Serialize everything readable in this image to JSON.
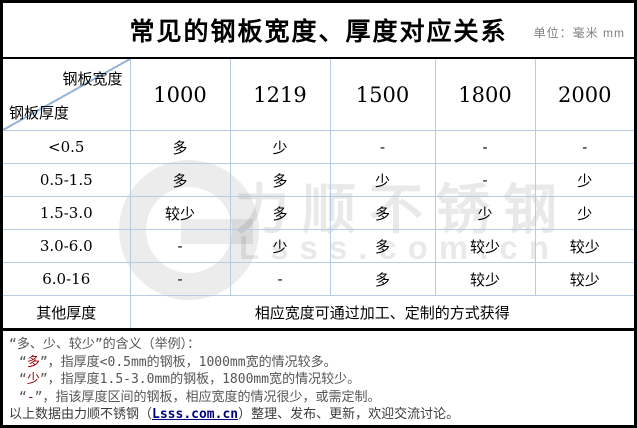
{
  "title": {
    "text": "常见的钢板宽度、厚度对应关系",
    "unit_label": "单位：毫米 mm"
  },
  "table": {
    "corner": {
      "top_right": "钢板宽度",
      "bottom_left": "钢板厚度"
    },
    "width_headers": [
      "1000",
      "1219",
      "1500",
      "1800",
      "2000"
    ],
    "rows": [
      {
        "label": "<0.5",
        "values": [
          "多",
          "少",
          "-",
          "-",
          "-"
        ]
      },
      {
        "label": "0.5-1.5",
        "values": [
          "多",
          "多",
          "少",
          "-",
          "少"
        ]
      },
      {
        "label": "1.5-3.0",
        "values": [
          "较少",
          "多",
          "多",
          "少",
          "少"
        ]
      },
      {
        "label": "3.0-6.0",
        "values": [
          "-",
          "少",
          "多",
          "较少",
          "较少"
        ]
      },
      {
        "label": "6.0-16",
        "values": [
          "-",
          "-",
          "多",
          "较少",
          "较少"
        ]
      }
    ],
    "other_row": {
      "label": "其他厚度",
      "value": "相应宽度可通过加工、定制的方式获得"
    }
  },
  "watermark": {
    "brand": "力顺不锈钢",
    "site": "Lsss.com.cn"
  },
  "footnotes": {
    "heading": "“多、少、较少”的含义（举例）：",
    "items": [
      {
        "pre": "“",
        "key": "多",
        "post": "”，指厚度<0.5mm的钢板，1000mm宽的情况较多。"
      },
      {
        "pre": "“",
        "key": "少",
        "post": "”，指厚度1.5-3.0mm的钢板，1800mm宽的情况较少。"
      },
      {
        "pre": "“",
        "key": "-",
        "post": "”，指该厚度区间的钢板，相应宽度的情况很少，或需定制。"
      }
    ],
    "credit": {
      "pre": "以上数据由力顺不锈钢（",
      "link": "Lsss.com.cn",
      "post": "）整理、发布、更新，欢迎交流讨论。"
    }
  },
  "colors": {
    "frame": "#000000",
    "grid_line": "#b9cbe2",
    "diagonal_line": "#95b3d7",
    "unit_gray": "#808080",
    "footnote_gray": "#565656",
    "keyword_red": "#990000",
    "link_navy": "#000080",
    "watermark_gray": "#e8e8e8"
  }
}
